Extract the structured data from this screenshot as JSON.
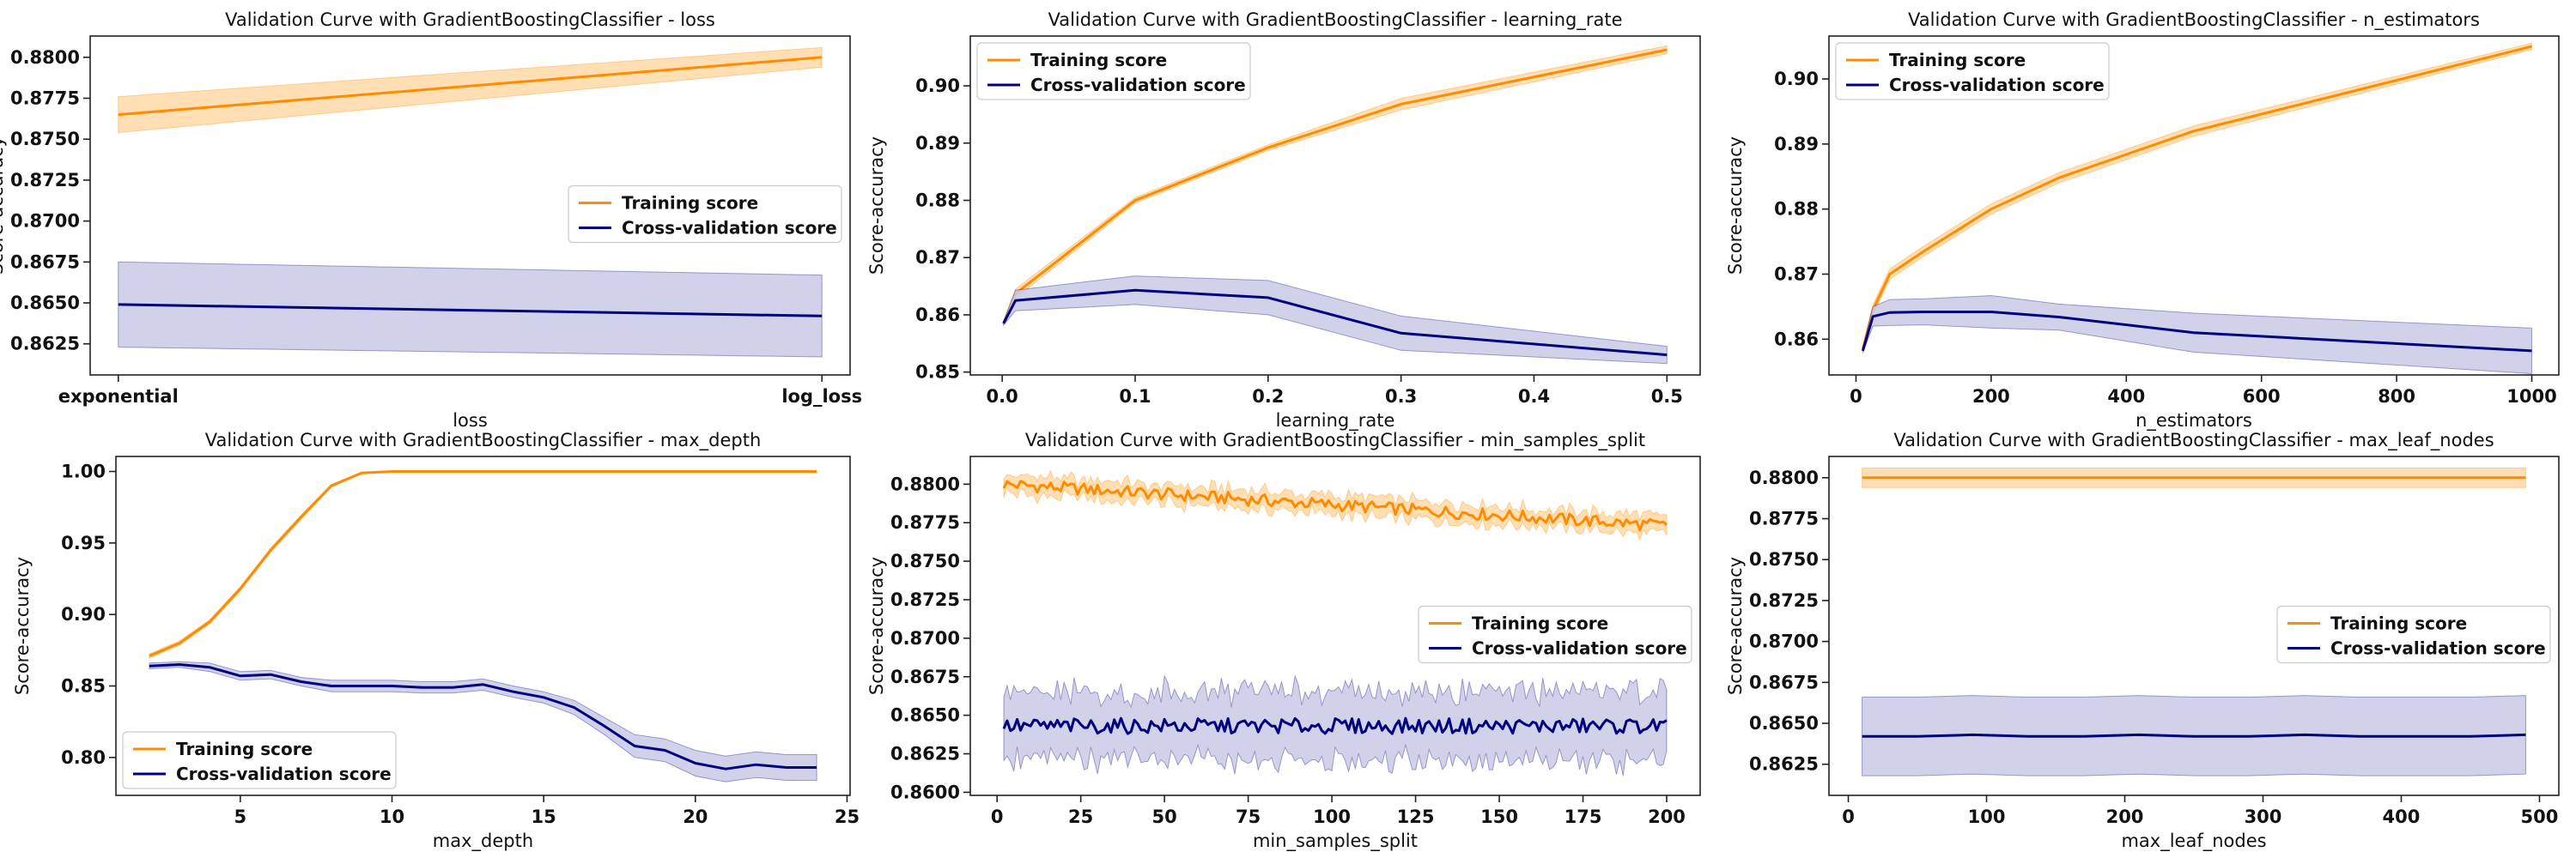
{
  "colors": {
    "training": "#ff8c00",
    "training_band": "#ffd9a6",
    "cv": "#000080",
    "cv_band": "#c9c9e6"
  },
  "legend_labels": [
    "Training score",
    "Cross-validation score"
  ],
  "chart_data": [
    {
      "type": "line",
      "title": "Validation Curve with GradientBoostingClassifier - loss",
      "xlabel": "loss",
      "ylabel": "Score-accuracy",
      "x_categorical": true,
      "x": [
        "exponential",
        "log_loss"
      ],
      "xticks": [
        "exponential",
        "log_loss"
      ],
      "yticks": [
        "0.8625",
        "0.8650",
        "0.8675",
        "0.8700",
        "0.8725",
        "0.8750",
        "0.8775",
        "0.8800"
      ],
      "ylim": [
        0.8606,
        0.8813
      ],
      "legend": "center-right",
      "series": [
        {
          "name": "Training score",
          "mean": [
            0.8765,
            0.88
          ],
          "std": [
            0.0011,
            0.0006
          ]
        },
        {
          "name": "Cross-validation score",
          "mean": [
            0.8649,
            0.8642
          ],
          "std": [
            0.0026,
            0.0025
          ]
        }
      ]
    },
    {
      "type": "line",
      "title": "Validation Curve with GradientBoostingClassifier - learning_rate",
      "xlabel": "learning_rate",
      "ylabel": "Score-accuracy",
      "x": [
        0.001,
        0.01,
        0.1,
        0.2,
        0.3,
        0.5
      ],
      "xticks": [
        0.0,
        0.1,
        0.2,
        0.3,
        0.4,
        0.5
      ],
      "yticks": [
        0.85,
        0.86,
        0.87,
        0.88,
        0.89,
        0.9
      ],
      "tick_decimals": 2,
      "xlim": [
        -0.024,
        0.525
      ],
      "ylim": [
        0.8495,
        0.9087
      ],
      "legend": "top-left",
      "series": [
        {
          "name": "Training score",
          "mean": [
            0.8585,
            0.8637,
            0.88,
            0.8892,
            0.8968,
            0.9063
          ],
          "std": [
            0.0003,
            0.0008,
            0.0005,
            0.0005,
            0.001,
            0.0007
          ]
        },
        {
          "name": "Cross-validation score",
          "mean": [
            0.8585,
            0.8625,
            0.8643,
            0.863,
            0.8568,
            0.853
          ],
          "std": [
            0.0003,
            0.0018,
            0.0025,
            0.003,
            0.003,
            0.0015
          ]
        }
      ]
    },
    {
      "type": "line",
      "title": "Validation Curve with GradientBoostingClassifier - n_estimators",
      "xlabel": "n_estimators",
      "ylabel": "Score-accuracy",
      "x": [
        10,
        25,
        50,
        100,
        200,
        300,
        500,
        1000
      ],
      "xticks": [
        0,
        200,
        400,
        600,
        800,
        1000
      ],
      "yticks": [
        0.86,
        0.87,
        0.88,
        0.89,
        0.9
      ],
      "tick_decimals": 2,
      "xlim": [
        -40,
        1040
      ],
      "ylim": [
        0.8545,
        0.9066
      ],
      "legend": "top-left",
      "series": [
        {
          "name": "Training score",
          "mean": [
            0.8585,
            0.8645,
            0.87,
            0.8735,
            0.88,
            0.8848,
            0.892,
            0.905
          ],
          "std": [
            0.0003,
            0.0008,
            0.0008,
            0.0008,
            0.0008,
            0.0008,
            0.0008,
            0.0005
          ]
        },
        {
          "name": "Cross-validation score",
          "mean": [
            0.8582,
            0.8635,
            0.8641,
            0.8642,
            0.8642,
            0.8634,
            0.861,
            0.8582
          ],
          "std": [
            0.0003,
            0.0015,
            0.002,
            0.002,
            0.0025,
            0.002,
            0.003,
            0.0035
          ]
        }
      ]
    },
    {
      "type": "line",
      "title": "Validation Curve with GradientBoostingClassifier - max_depth",
      "xlabel": "max_depth",
      "ylabel": "Score-accuracy",
      "x": [
        2,
        3,
        4,
        5,
        6,
        7,
        8,
        9,
        10,
        11,
        12,
        13,
        14,
        15,
        16,
        17,
        18,
        19,
        20,
        21,
        22,
        23,
        24
      ],
      "xticks": [
        5,
        10,
        15,
        20,
        25
      ],
      "yticks": [
        0.8,
        0.85,
        0.9,
        0.95,
        1.0
      ],
      "tick_decimals": 2,
      "xlim": [
        0.9,
        25.1
      ],
      "ylim": [
        0.7735,
        1.0105
      ],
      "legend": "bottom-left",
      "series": [
        {
          "name": "Training score",
          "mean": [
            0.871,
            0.88,
            0.895,
            0.918,
            0.945,
            0.968,
            0.99,
            0.999,
            1.0,
            1.0,
            1.0,
            1.0,
            1.0,
            1.0,
            1.0,
            1.0,
            1.0,
            1.0,
            1.0,
            1.0,
            1.0,
            1.0,
            1.0
          ],
          "std": [
            0.0015,
            0.0015,
            0.0015,
            0.0015,
            0.0015,
            0.0015,
            0.001,
            0.0005,
            0,
            0,
            0,
            0,
            0,
            0,
            0,
            0,
            0,
            0,
            0,
            0,
            0,
            0,
            0
          ]
        },
        {
          "name": "Cross-validation score",
          "mean": [
            0.864,
            0.865,
            0.863,
            0.857,
            0.858,
            0.853,
            0.85,
            0.85,
            0.85,
            0.849,
            0.849,
            0.851,
            0.846,
            0.842,
            0.835,
            0.822,
            0.808,
            0.805,
            0.796,
            0.792,
            0.795,
            0.793,
            0.793
          ],
          "std": [
            0.002,
            0.002,
            0.003,
            0.003,
            0.003,
            0.003,
            0.004,
            0.004,
            0.004,
            0.004,
            0.004,
            0.004,
            0.004,
            0.004,
            0.005,
            0.006,
            0.008,
            0.008,
            0.009,
            0.009,
            0.009,
            0.009,
            0.009
          ]
        }
      ]
    },
    {
      "type": "line",
      "title": "Validation Curve with GradientBoostingClassifier - min_samples_split",
      "xlabel": "min_samples_split",
      "ylabel": "Score-accuracy",
      "x_range": [
        2,
        200
      ],
      "xticks": [
        0,
        25,
        50,
        75,
        100,
        125,
        150,
        175,
        200
      ],
      "yticks": [
        "0.8600",
        "0.8625",
        "0.8650",
        "0.8675",
        "0.8700",
        "0.8725",
        "0.8750",
        "0.8775",
        "0.8800"
      ],
      "xlim": [
        -8,
        210
      ],
      "ylim": [
        0.8598,
        0.8818
      ],
      "legend": "center-right",
      "series": [
        {
          "name": "Training score",
          "mean_start": 0.88,
          "mean_end": 0.8773,
          "wobble": 0.0004,
          "std": 0.0006
        },
        {
          "name": "Cross-validation score",
          "mean_level": 0.8643,
          "wobble": 0.0005,
          "std": 0.0022
        }
      ]
    },
    {
      "type": "line",
      "title": "Validation Curve with GradientBoostingClassifier - max_leaf_nodes",
      "xlabel": "max_leaf_nodes",
      "ylabel": "Score-accuracy",
      "x": [
        10,
        50,
        90,
        130,
        170,
        210,
        250,
        290,
        330,
        370,
        410,
        450,
        490
      ],
      "xticks": [
        0,
        100,
        200,
        300,
        400,
        500
      ],
      "yticks": [
        "0.8625",
        "0.8650",
        "0.8675",
        "0.8700",
        "0.8725",
        "0.8750",
        "0.8775",
        "0.8800"
      ],
      "xlim": [
        -14,
        514
      ],
      "ylim": [
        0.8606,
        0.8813
      ],
      "legend": "center-right",
      "series": [
        {
          "name": "Training score",
          "mean": [
            0.88,
            0.88,
            0.88,
            0.88,
            0.88,
            0.88,
            0.88,
            0.88,
            0.88,
            0.88,
            0.88,
            0.88,
            0.88
          ],
          "std": [
            0.0006,
            0.0006,
            0.0006,
            0.0006,
            0.0006,
            0.0006,
            0.0006,
            0.0006,
            0.0006,
            0.0006,
            0.0006,
            0.0006,
            0.0006
          ]
        },
        {
          "name": "Cross-validation score",
          "mean": [
            0.8642,
            0.8642,
            0.8643,
            0.8642,
            0.8642,
            0.8643,
            0.8642,
            0.8642,
            0.8643,
            0.8642,
            0.8642,
            0.8642,
            0.8643
          ],
          "std": [
            0.0024,
            0.0024,
            0.0024,
            0.0024,
            0.0024,
            0.0024,
            0.0024,
            0.0024,
            0.0024,
            0.0024,
            0.0024,
            0.0024,
            0.0024
          ]
        }
      ]
    }
  ]
}
